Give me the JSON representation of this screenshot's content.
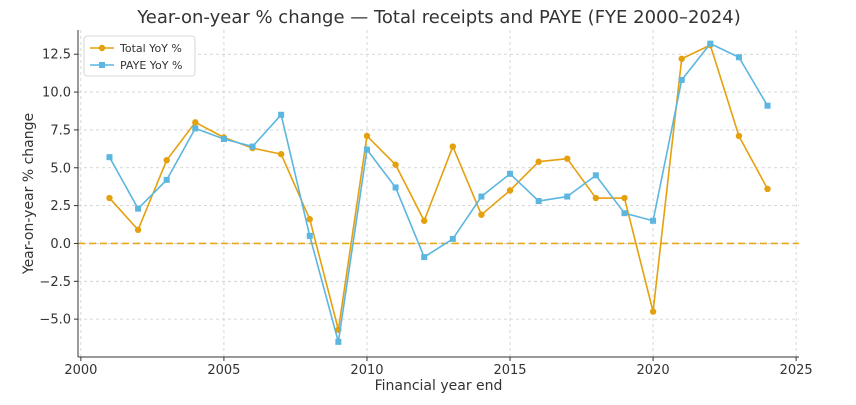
{
  "chart_data": {
    "type": "line",
    "title": "Year-on-year % change — Total receipts and PAYE (FYE 2000–2024)",
    "xlabel": "Financial year end",
    "ylabel": "Year-on-year % change",
    "xlim": [
      1999.9,
      2025.1
    ],
    "ylim": [
      -7.5,
      14.1
    ],
    "x_ticks": [
      2000,
      2005,
      2010,
      2015,
      2020,
      2025
    ],
    "x_tick_labels": [
      "2000",
      "2005",
      "2010",
      "2015",
      "2020",
      "2025"
    ],
    "y_ticks": [
      -5.0,
      -2.5,
      0.0,
      2.5,
      5.0,
      7.5,
      10.0,
      12.5
    ],
    "y_tick_labels": [
      "−5.0",
      "−2.5",
      "0.0",
      "2.5",
      "5.0",
      "7.5",
      "10.0",
      "12.5"
    ],
    "grid": true,
    "legend_position": "top-left",
    "reference_line": {
      "y": 0,
      "style": "dashed",
      "color": "#e5a91a"
    },
    "x": [
      2001,
      2002,
      2003,
      2004,
      2005,
      2006,
      2007,
      2008,
      2009,
      2010,
      2011,
      2012,
      2013,
      2014,
      2015,
      2016,
      2017,
      2018,
      2019,
      2020,
      2021,
      2022,
      2023,
      2024
    ],
    "series": [
      {
        "name": "Total YoY %",
        "color": "#e5a00d",
        "marker": "circle",
        "values": [
          3.0,
          0.9,
          5.5,
          8.0,
          7.0,
          6.3,
          5.9,
          1.6,
          -5.7,
          7.1,
          5.2,
          1.5,
          6.4,
          1.9,
          3.5,
          5.4,
          5.6,
          3.0,
          3.0,
          -4.5,
          12.2,
          13.1,
          7.1,
          3.6
        ]
      },
      {
        "name": "PAYE YoY %",
        "color": "#5bb6e0",
        "marker": "square",
        "values": [
          5.7,
          2.3,
          4.2,
          7.6,
          6.9,
          6.4,
          8.5,
          0.5,
          -6.5,
          6.2,
          3.7,
          -0.9,
          0.3,
          3.1,
          4.6,
          2.8,
          3.1,
          4.5,
          2.0,
          1.5,
          10.8,
          13.2,
          12.3,
          9.1
        ]
      }
    ]
  }
}
